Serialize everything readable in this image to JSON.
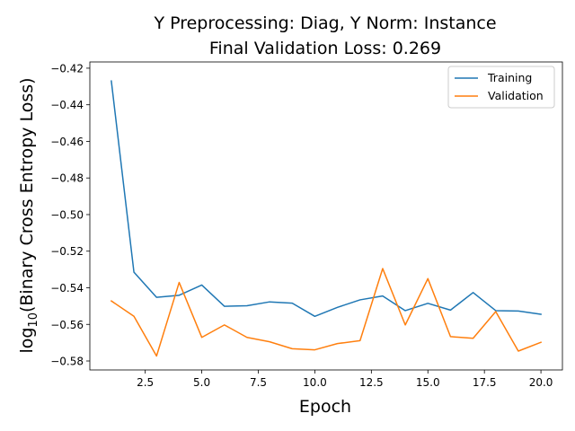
{
  "chart_data": {
    "type": "line",
    "title_line1": "Y Preprocessing: Diag, Y Norm: Instance",
    "title_line2": "Final Validation Loss: 0.269",
    "xlabel": "Epoch",
    "ylabel": "log",
    "ylabel_sub": "10",
    "ylabel_rest": "(Binary Cross Entropy Loss)",
    "xlim": [
      0.05,
      20.95
    ],
    "ylim": [
      -0.5849,
      -0.4166
    ],
    "x_ticks": [
      2.5,
      5.0,
      7.5,
      10.0,
      12.5,
      15.0,
      17.5,
      20.0
    ],
    "x_tick_labels": [
      "2.5",
      "5.0",
      "7.5",
      "10.0",
      "12.5",
      "15.0",
      "17.5",
      "20.0"
    ],
    "y_ticks": [
      -0.42,
      -0.44,
      -0.46,
      -0.48,
      -0.5,
      -0.52,
      -0.54,
      -0.56,
      -0.58
    ],
    "y_tick_labels": [
      "−0.42",
      "−0.44",
      "−0.46",
      "−0.48",
      "−0.50",
      "−0.52",
      "−0.54",
      "−0.56",
      "−0.58"
    ],
    "legend_position": "top-right",
    "grid": false,
    "x": [
      1,
      2,
      3,
      4,
      5,
      6,
      7,
      8,
      9,
      10,
      11,
      12,
      13,
      14,
      15,
      16,
      17,
      18,
      19,
      20
    ],
    "series": [
      {
        "name": "Training",
        "color": "#1f77b4",
        "values": [
          -0.427,
          -0.5315,
          -0.5452,
          -0.5441,
          -0.5385,
          -0.5501,
          -0.5498,
          -0.5477,
          -0.5484,
          -0.5556,
          -0.5507,
          -0.5466,
          -0.5445,
          -0.5525,
          -0.5485,
          -0.5522,
          -0.5426,
          -0.5525,
          -0.5527,
          -0.5545
        ]
      },
      {
        "name": "Validation",
        "color": "#ff7f0e",
        "values": [
          -0.5472,
          -0.5556,
          -0.5773,
          -0.5371,
          -0.5671,
          -0.5603,
          -0.5671,
          -0.5695,
          -0.5733,
          -0.5739,
          -0.5705,
          -0.5689,
          -0.5295,
          -0.5603,
          -0.535,
          -0.5667,
          -0.5676,
          -0.553,
          -0.5746,
          -0.5698
        ]
      }
    ]
  }
}
